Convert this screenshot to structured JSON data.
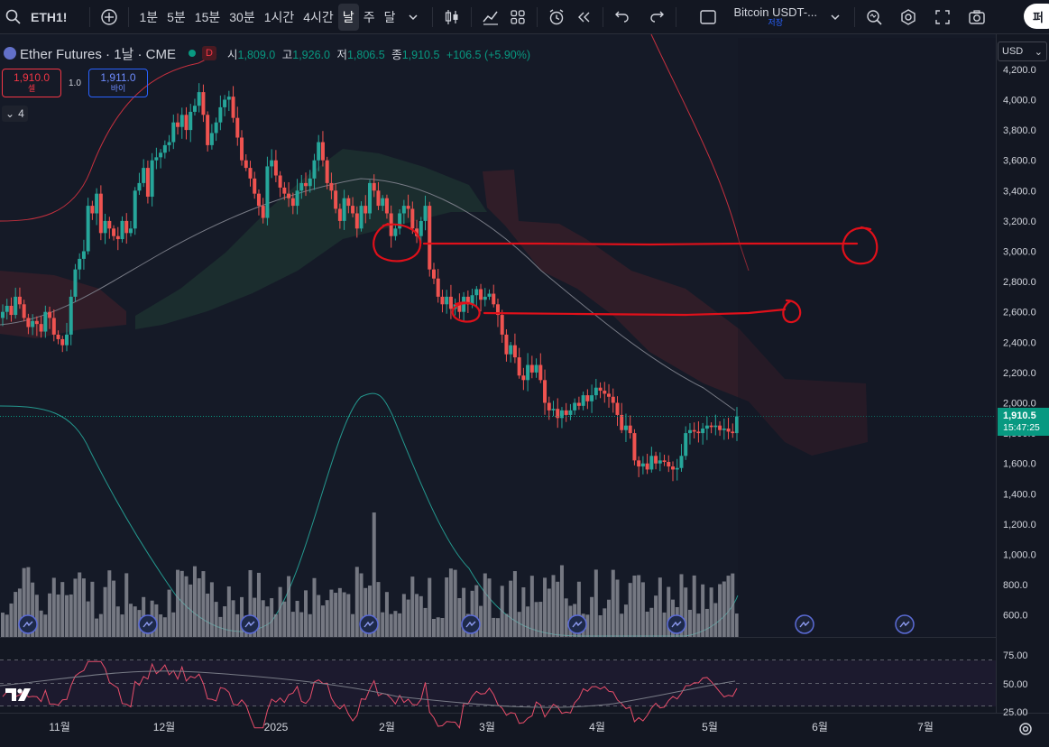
{
  "toolbar": {
    "symbol": "ETH1!",
    "intervals": [
      "1분",
      "5분",
      "15분",
      "30분",
      "1시간",
      "4시간",
      "날",
      "주",
      "달"
    ],
    "active_interval": "날",
    "compare_title": "Bitcoin USDT-...",
    "compare_sub": "저장",
    "publish_label": "퍼"
  },
  "legend": {
    "name": "Ether Futures · 1날 · CME",
    "d_badge": "D",
    "open_label": "시",
    "open": "1,809.0",
    "high_label": "고",
    "high": "1,926.0",
    "low_label": "저",
    "low": "1,806.5",
    "close_label": "종",
    "close": "1,910.5",
    "change": "+106.5 (+5.90%)"
  },
  "trade": {
    "sell_price": "1,910.0",
    "sell_label": "셀",
    "qty": "1.0",
    "buy_price": "1,911.0",
    "buy_label": "바이"
  },
  "indicators_collapsed": "4",
  "price_scale": {
    "currency": "USD",
    "ticks": [
      "4,200.0",
      "4,000.0",
      "3,800.0",
      "3,600.0",
      "3,400.0",
      "3,200.0",
      "3,000.0",
      "2,800.0",
      "2,600.0",
      "2,400.0",
      "2,200.0",
      "2,000.0",
      "1,800.0",
      "1,600.0",
      "1,400.0",
      "1,200.0",
      "1,000.0",
      "800.0",
      "600.0"
    ],
    "last_price": "1,910.5",
    "countdown": "15:47:25"
  },
  "rsi_scale": {
    "ticks": [
      "75.00",
      "50.00",
      "25.00"
    ]
  },
  "time_axis": {
    "labels": [
      "11월",
      "12월",
      "2025",
      "2월",
      "3월",
      "4월",
      "5월",
      "6월",
      "7월"
    ]
  },
  "colors": {
    "up": "#26a69a",
    "down": "#ef5350",
    "annotation": "#e0101a",
    "background": "#131722"
  },
  "chart_data": {
    "type": "candlestick",
    "title": "Ether Futures · 1날 · CME",
    "ylim": [
      540,
      4230
    ],
    "x_labels": [
      "11월",
      "12월",
      "2025",
      "2월",
      "3월",
      "4월",
      "5월",
      "6월",
      "7월"
    ],
    "last_close": 1910.5,
    "closes": [
      2600,
      2640,
      2580,
      2700,
      2650,
      2560,
      2500,
      2540,
      2520,
      2470,
      2600,
      2560,
      2450,
      2420,
      2380,
      2450,
      2700,
      2880,
      2950,
      3000,
      3300,
      3250,
      3380,
      3120,
      3200,
      3150,
      3100,
      3080,
      3200,
      3120,
      3150,
      3400,
      3450,
      3550,
      3360,
      3600,
      3620,
      3650,
      3700,
      3720,
      3850,
      3820,
      3900,
      3800,
      3920,
      3960,
      4050,
      3900,
      3700,
      3780,
      3850,
      3950,
      4000,
      4020,
      3880,
      3750,
      3600,
      3550,
      3480,
      3380,
      3300,
      3220,
      3560,
      3600,
      3500,
      3420,
      3380,
      3350,
      3300,
      3400,
      3450,
      3430,
      3480,
      3600,
      3720,
      3600,
      3450,
      3400,
      3280,
      3200,
      3350,
      3300,
      3250,
      3150,
      3300,
      3250,
      3450,
      3400,
      3300,
      3350,
      3250,
      3100,
      3150,
      3250,
      3300,
      3280,
      3150,
      3100,
      3200,
      3300,
      2880,
      2820,
      2700,
      2650,
      2700,
      2620,
      2650,
      2600,
      2700,
      2650,
      2710,
      2750,
      2680,
      2700,
      2720,
      2650,
      2580,
      2450,
      2320,
      2380,
      2300,
      2180,
      2150,
      2250,
      2200,
      2250,
      2150,
      2000,
      1950,
      1960,
      1900,
      1950,
      1920,
      1950,
      2000,
      1980,
      2050,
      2010,
      2050,
      2100,
      2080,
      2060,
      2040,
      2000,
      1920,
      1820,
      1850,
      1800,
      1620,
      1580,
      1600,
      1560,
      1650,
      1600,
      1620,
      1610,
      1580,
      1560,
      1570,
      1650,
      1800,
      1820,
      1810,
      1800,
      1830,
      1850,
      1840,
      1850,
      1820,
      1830,
      1810,
      1800,
      1910.5
    ],
    "rsi_ticks": [
      75,
      50,
      25
    ]
  }
}
